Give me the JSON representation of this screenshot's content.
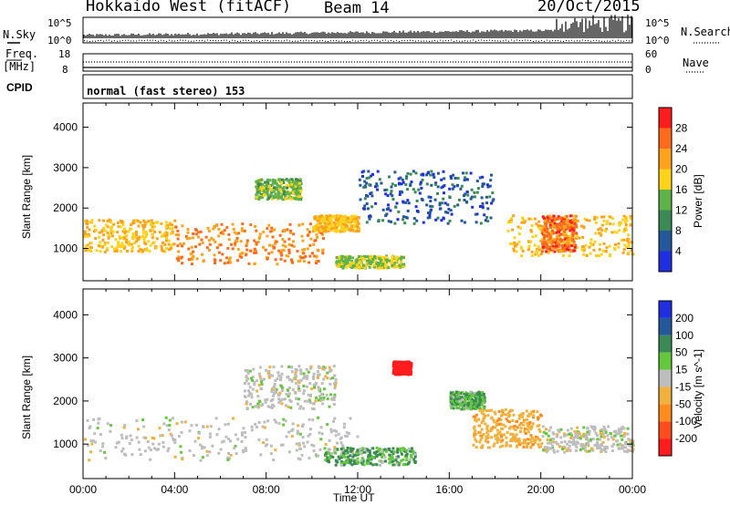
{
  "header": {
    "radar": "Hokkaido West (fitACF)",
    "beam": "Beam 14",
    "date": "20/Oct/2015"
  },
  "left_labels": {
    "nsky": "N.Sky",
    "freq_l1": "Freq.",
    "freq_l2": "[MHz]",
    "cpid": "CPID"
  },
  "right_labels": {
    "nsearch": "N.Search",
    "nave": "Nave"
  },
  "noise_axis": {
    "top": "10^5",
    "bottom": "10^0"
  },
  "freq_axis": {
    "top": "18",
    "bottom": "8"
  },
  "nave_axis": {
    "top": "60",
    "bottom": "0"
  },
  "cpid_text": "normal (fast stereo) 153",
  "x_axis": {
    "label": "Time UT",
    "ticks": [
      "00:00",
      "04:00",
      "08:00",
      "12:00",
      "16:00",
      "20:00",
      "00:00"
    ]
  },
  "colors": {
    "power_scale": [
      "#1f2fe0",
      "#24589a",
      "#3b8a56",
      "#5fb24a",
      "#ffd21c",
      "#ffa31c",
      "#ff6b1c",
      "#ff1c1c"
    ],
    "velocity_scale": [
      "#1f2fe0",
      "#24589a",
      "#3b8a56",
      "#64c83c",
      "#bdbdbd",
      "#f0b23c",
      "#ff8c1c",
      "#ff4c1c",
      "#ff1c1c"
    ]
  },
  "chart_data": [
    {
      "type": "heatmap",
      "title": "",
      "xlabel": "Time UT",
      "ylabel": "Slant Range [km]",
      "ylim": [
        200,
        4600
      ],
      "xlim_hours": [
        0,
        24
      ],
      "y_ticks": [
        1000,
        2000,
        3000,
        4000
      ],
      "colorbar": {
        "label": "Power [dB]",
        "ticks": [
          4,
          8,
          12,
          16,
          20,
          24,
          28
        ]
      },
      "bands": [
        {
          "t0": 0,
          "t1": 4,
          "r0": 900,
          "r1": 1700,
          "value": 22
        },
        {
          "t0": 4,
          "t1": 10.5,
          "r0": 600,
          "r1": 1600,
          "value": 26
        },
        {
          "t0": 7.5,
          "t1": 9.5,
          "r0": 2200,
          "r1": 2700,
          "value": 16
        },
        {
          "t0": 10,
          "t1": 12,
          "r0": 1400,
          "r1": 1800,
          "value": 22
        },
        {
          "t0": 11,
          "t1": 14,
          "r0": 500,
          "r1": 800,
          "value": 18
        },
        {
          "t0": 12,
          "t1": 18,
          "r0": 1600,
          "r1": 2900,
          "value": 8
        },
        {
          "t0": 18.5,
          "t1": 24,
          "r0": 800,
          "r1": 1800,
          "value": 22
        },
        {
          "t0": 20,
          "t1": 21.5,
          "r0": 900,
          "r1": 1800,
          "value": 28
        }
      ]
    },
    {
      "type": "heatmap",
      "title": "",
      "xlabel": "Time UT",
      "ylabel": "Slant Range [km]",
      "ylim": [
        200,
        4600
      ],
      "xlim_hours": [
        0,
        24
      ],
      "y_ticks": [
        1000,
        2000,
        3000,
        4000
      ],
      "colorbar": {
        "label": "Velocity [m s^-1]",
        "ticks": [
          200,
          100,
          50,
          15,
          -15,
          -50,
          -100,
          -200
        ]
      },
      "bands": [
        {
          "t0": 0,
          "t1": 12,
          "r0": 600,
          "r1": 1600,
          "value": 0
        },
        {
          "t0": 7,
          "t1": 11,
          "r0": 1800,
          "r1": 2800,
          "value": 0
        },
        {
          "t0": 10.5,
          "t1": 14.5,
          "r0": 500,
          "r1": 900,
          "value": 30
        },
        {
          "t0": 13.5,
          "t1": 14.3,
          "r0": 2600,
          "r1": 2900,
          "value": -200
        },
        {
          "t0": 16,
          "t1": 17.5,
          "r0": 1800,
          "r1": 2200,
          "value": 30
        },
        {
          "t0": 17,
          "t1": 20,
          "r0": 900,
          "r1": 1800,
          "value": -40
        },
        {
          "t0": 20,
          "t1": 24,
          "r0": 800,
          "r1": 1400,
          "value": 0
        }
      ]
    }
  ]
}
